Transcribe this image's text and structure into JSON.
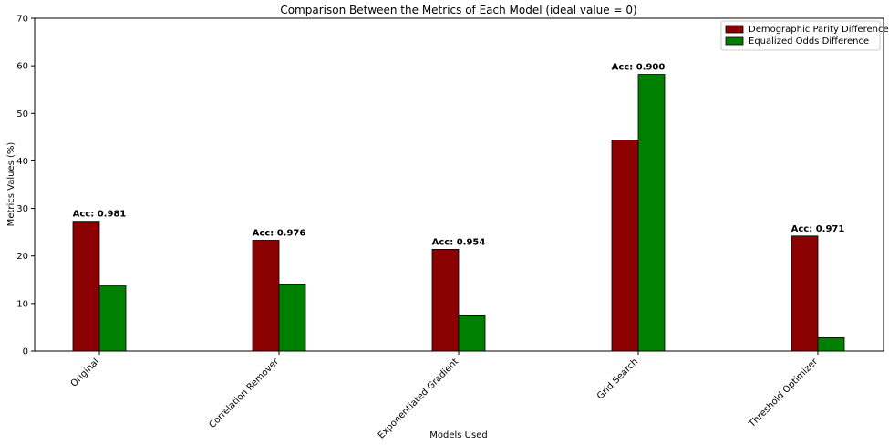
{
  "chart_data": {
    "type": "bar",
    "title": "Comparison Between the Metrics of Each Model (ideal value = 0)",
    "xlabel": "Models Used",
    "ylabel": "Metrics Values (%)",
    "ylim": [
      0,
      70
    ],
    "yticks": [
      0,
      10,
      20,
      30,
      40,
      50,
      60,
      70
    ],
    "categories": [
      "Original",
      "Correlation Remover",
      "Exponentiated Gradient",
      "Grid Search",
      "Threshold Optimizer"
    ],
    "series": [
      {
        "name": "Demographic Parity Difference",
        "color": "#8b0000",
        "values": [
          27.3,
          23.3,
          21.4,
          44.4,
          24.2
        ]
      },
      {
        "name": "Equalized Odds Difference",
        "color": "#008000",
        "values": [
          13.7,
          14.1,
          7.6,
          58.2,
          2.8
        ]
      }
    ],
    "annotations": [
      "Acc: 0.981",
      "Acc: 0.976",
      "Acc: 0.954",
      "Acc: 0.900",
      "Acc: 0.971"
    ],
    "legend_position": "top-right",
    "grid": false
  }
}
